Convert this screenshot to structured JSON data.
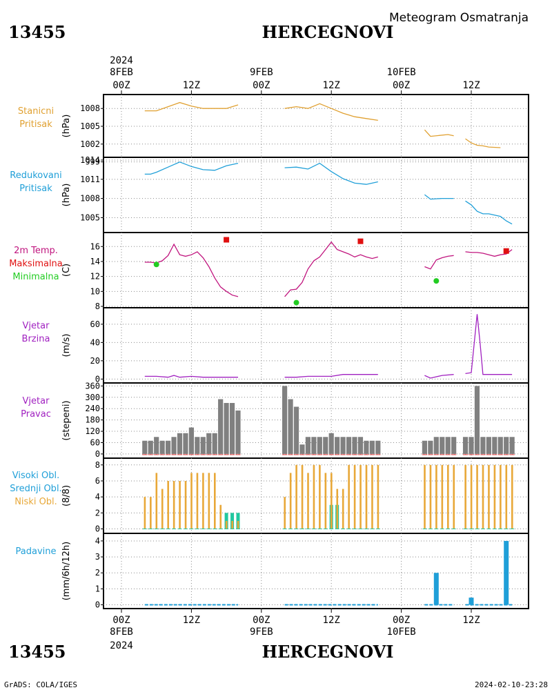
{
  "header": {
    "station_id": "13455",
    "station_name": "HERCEGNOVI",
    "title": "Meteogram Osmatranja"
  },
  "footer": {
    "credit": "GrADS: COLA/IGES",
    "timestamp": "2024-02-10-23:28"
  },
  "time_axis": {
    "top_year": "2024",
    "bottom_year": "2024",
    "ticks": [
      {
        "hour": 0,
        "label": "00Z",
        "date": "8FEB"
      },
      {
        "hour": 12,
        "label": "12Z",
        "date": ""
      },
      {
        "hour": 24,
        "label": "00Z",
        "date": "9FEB"
      },
      {
        "hour": 36,
        "label": "12Z",
        "date": ""
      },
      {
        "hour": 48,
        "label": "00Z",
        "date": "10FEB"
      },
      {
        "hour": 60,
        "label": "12Z",
        "date": ""
      }
    ]
  },
  "colors": {
    "pressure": "#e0a030",
    "reduced_pressure": "#1f9fd8",
    "temp": "#c0147e",
    "tmax": "#e01010",
    "tmin": "#22cc22",
    "wind": "#a020c0",
    "wind_dir": "#808080",
    "cloud_low": "#e8a838",
    "cloud_mid": "#22c8a0",
    "precip": "#1f9fd8"
  },
  "chart_data": [
    {
      "type": "line",
      "name": "pressure",
      "labels": [
        "Stanicni",
        "Pritisak"
      ],
      "ylabel": "(hPa)",
      "ylim": [
        1000,
        1010
      ],
      "yticks": [
        "999",
        "1002",
        "1005",
        "1008"
      ],
      "ytick_values": [
        999,
        1002,
        1005,
        1008
      ],
      "series": [
        {
          "x": [
            4,
            6,
            8,
            10,
            12,
            14,
            16,
            18,
            20
          ],
          "y": [
            1007.6,
            1007.6,
            1008.3,
            1009.0,
            1008.4,
            1008.0,
            1008.0,
            1008.0,
            1008.6
          ]
        },
        {
          "x": [
            28,
            30,
            32,
            34,
            36,
            38,
            40,
            42,
            44
          ],
          "y": [
            1008.0,
            1008.3,
            1008.0,
            1008.8,
            1008.0,
            1007.2,
            1006.6,
            1006.3,
            1006.0
          ]
        },
        {
          "x": [
            52,
            53,
            56,
            57
          ],
          "y": [
            1004.4,
            1003.3,
            1003.6,
            1003.4
          ]
        },
        {
          "x": [
            59,
            60,
            61,
            62,
            63,
            65
          ],
          "y": [
            1002.9,
            1002.2,
            1001.8,
            1001.7,
            1001.5,
            1001.4
          ]
        }
      ]
    },
    {
      "type": "line",
      "name": "reduced_pressure",
      "labels": [
        "Redukovani",
        "Pritisak"
      ],
      "ylabel": "(hPa)",
      "ylim": [
        1003,
        1014
      ],
      "yticks": [
        "1005",
        "1008",
        "1011",
        "1014"
      ],
      "ytick_values": [
        1005,
        1008,
        1011,
        1014
      ],
      "series": [
        {
          "x": [
            4,
            5,
            6,
            8,
            10,
            12,
            14,
            16,
            18,
            20
          ],
          "y": [
            1011.8,
            1011.8,
            1012.1,
            1012.9,
            1013.7,
            1013.0,
            1012.5,
            1012.4,
            1013.1,
            1013.5
          ]
        },
        {
          "x": [
            28,
            30,
            32,
            34,
            36,
            38,
            40,
            42,
            44
          ],
          "y": [
            1012.8,
            1012.9,
            1012.6,
            1013.5,
            1012.2,
            1011.1,
            1010.4,
            1010.2,
            1010.6
          ]
        },
        {
          "x": [
            52,
            53,
            55,
            57
          ],
          "y": [
            1008.6,
            1007.9,
            1008.0,
            1008.0
          ]
        },
        {
          "x": [
            59,
            60,
            61,
            62,
            63,
            64,
            65,
            66,
            67
          ],
          "y": [
            1007.6,
            1007.0,
            1006.0,
            1005.6,
            1005.6,
            1005.4,
            1005.2,
            1004.5,
            1004.0
          ]
        }
      ]
    },
    {
      "type": "line",
      "name": "temperature",
      "labels": [
        "2m Temp.",
        "Maksimalna",
        "Minimalna"
      ],
      "ylabel": "(C)",
      "ylim": [
        8,
        17.5
      ],
      "yticks": [
        "8",
        "10",
        "12",
        "14",
        "16"
      ],
      "ytick_values": [
        8,
        10,
        12,
        14,
        16
      ],
      "series": [
        {
          "x": [
            4,
            5,
            6,
            7,
            8,
            9,
            10,
            11,
            12,
            13,
            14,
            15,
            16,
            17,
            18,
            19,
            20
          ],
          "y": [
            13.9,
            13.9,
            13.8,
            14.1,
            14.8,
            16.3,
            14.9,
            14.7,
            14.9,
            15.3,
            14.5,
            13.3,
            11.8,
            10.6,
            10.0,
            9.5,
            9.3
          ]
        },
        {
          "x": [
            28,
            29,
            30,
            31,
            32,
            33,
            34,
            35,
            36,
            37,
            38,
            39,
            40,
            41,
            42,
            43,
            44
          ],
          "y": [
            9.3,
            10.2,
            10.3,
            11.2,
            13.0,
            14.1,
            14.6,
            15.6,
            16.6,
            15.6,
            15.3,
            15.0,
            14.6,
            14.9,
            14.6,
            14.4,
            14.6
          ]
        },
        {
          "x": [
            52,
            53,
            54,
            55,
            56,
            57
          ],
          "y": [
            13.3,
            13.0,
            14.2,
            14.5,
            14.7,
            14.8
          ]
        },
        {
          "x": [
            59,
            60,
            61,
            62,
            63,
            64,
            65,
            66,
            67
          ],
          "y": [
            15.3,
            15.2,
            15.2,
            15.1,
            14.9,
            14.7,
            14.9,
            15.0,
            15.6
          ]
        }
      ],
      "tmax": [
        {
          "x": 18,
          "y": 16.9
        },
        {
          "x": 41,
          "y": 16.7
        },
        {
          "x": 66,
          "y": 15.4
        }
      ],
      "tmin": [
        {
          "x": 6,
          "y": 13.6
        },
        {
          "x": 30,
          "y": 8.5
        },
        {
          "x": 54,
          "y": 11.4
        }
      ]
    },
    {
      "type": "line",
      "name": "wind_speed",
      "labels": [
        "Vjetar",
        "Brzina"
      ],
      "ylabel": "(m/s)",
      "ylim": [
        -2,
        75
      ],
      "yticks": [
        "0",
        "20",
        "40",
        "60"
      ],
      "ytick_values": [
        0,
        20,
        40,
        60
      ],
      "series": [
        {
          "x": [
            4,
            6,
            8,
            9,
            10,
            12,
            14,
            16,
            18,
            20
          ],
          "y": [
            3,
            3,
            2,
            4,
            2,
            3,
            2,
            2,
            2,
            2
          ]
        },
        {
          "x": [
            28,
            30,
            32,
            34,
            36,
            38,
            40,
            42,
            44
          ],
          "y": [
            2,
            2,
            3,
            3,
            3,
            5,
            5,
            5,
            5
          ]
        },
        {
          "x": [
            52,
            53,
            55,
            57
          ],
          "y": [
            4,
            1,
            4,
            5
          ]
        },
        {
          "x": [
            59,
            60,
            61,
            61.5,
            62,
            64,
            67
          ],
          "y": [
            6,
            7,
            71,
            40,
            5,
            5,
            5
          ]
        }
      ]
    },
    {
      "type": "bar",
      "name": "wind_direction",
      "labels": [
        "Vjetar",
        "Pravac"
      ],
      "ylabel": "(stepeni)",
      "ylim": [
        -15,
        365
      ],
      "yticks": [
        "0",
        "60",
        "120",
        "180",
        "240",
        "300",
        "360"
      ],
      "ytick_values": [
        0,
        60,
        120,
        180,
        240,
        300,
        360
      ],
      "x": [
        4,
        5,
        6,
        7,
        8,
        9,
        10,
        11,
        12,
        13,
        14,
        15,
        16,
        17,
        18,
        19,
        20,
        28,
        29,
        30,
        31,
        32,
        33,
        34,
        35,
        36,
        37,
        38,
        39,
        40,
        41,
        42,
        43,
        44,
        52,
        53,
        54,
        55,
        56,
        57,
        59,
        60,
        61,
        62,
        63,
        64,
        65,
        66,
        67
      ],
      "values": [
        70,
        70,
        90,
        70,
        70,
        90,
        110,
        110,
        140,
        90,
        90,
        110,
        110,
        290,
        270,
        270,
        230,
        360,
        290,
        250,
        50,
        90,
        90,
        90,
        90,
        110,
        90,
        90,
        90,
        90,
        90,
        70,
        70,
        70,
        70,
        70,
        90,
        90,
        90,
        90,
        90,
        90,
        360,
        90,
        90,
        90,
        90,
        90,
        90
      ]
    },
    {
      "type": "bar",
      "name": "clouds",
      "labels": [
        "Visoki Obl.",
        "Srednji Obl.",
        "Niski Obl."
      ],
      "ylabel": "(8/8)",
      "ylim": [
        -0.3,
        8.5
      ],
      "yticks": [
        "0",
        "2",
        "4",
        "6",
        "8"
      ],
      "ytick_values": [
        0,
        2,
        4,
        6,
        8
      ],
      "x": [
        4,
        5,
        6,
        7,
        8,
        9,
        10,
        11,
        12,
        13,
        14,
        15,
        16,
        17,
        18,
        19,
        20,
        28,
        29,
        30,
        31,
        32,
        33,
        34,
        35,
        36,
        37,
        38,
        39,
        40,
        41,
        42,
        43,
        44,
        52,
        53,
        54,
        55,
        56,
        57,
        59,
        60,
        61,
        62,
        63,
        64,
        65,
        66,
        67
      ],
      "low": [
        4,
        4,
        7,
        5,
        6,
        6,
        6,
        6,
        7,
        7,
        7,
        7,
        7,
        3,
        1,
        1,
        1,
        4,
        7,
        8,
        8,
        7,
        8,
        8,
        7,
        7,
        5,
        5,
        8,
        8,
        8,
        8,
        8,
        8,
        8,
        8,
        8,
        8,
        8,
        8,
        8,
        8,
        8,
        8,
        8,
        8,
        8,
        8,
        8
      ],
      "mid": [
        0,
        0,
        0,
        0,
        0,
        0,
        0,
        0,
        0,
        0,
        0,
        0,
        0,
        0,
        2,
        2,
        2,
        0,
        0,
        0,
        0,
        0,
        0,
        0,
        0,
        3,
        3,
        0,
        0,
        0,
        0,
        0,
        0,
        0,
        0,
        0,
        0,
        0,
        0,
        0,
        0,
        0,
        0,
        0,
        0,
        0,
        0,
        0,
        0
      ]
    },
    {
      "type": "bar",
      "name": "precipitation",
      "labels": [
        "Padavine"
      ],
      "ylabel": "(mm/6h/12h)",
      "ylim": [
        -0.15,
        4.3
      ],
      "yticks": [
        "0",
        "1",
        "2",
        "3",
        "4"
      ],
      "ytick_values": [
        0,
        1,
        2,
        3,
        4
      ],
      "x": [
        54,
        60,
        66
      ],
      "values": [
        2.0,
        0.45,
        4.0
      ],
      "trace_segments": [
        [
          4,
          20
        ],
        [
          28,
          44
        ],
        [
          52,
          57
        ],
        [
          59,
          67
        ]
      ]
    }
  ]
}
